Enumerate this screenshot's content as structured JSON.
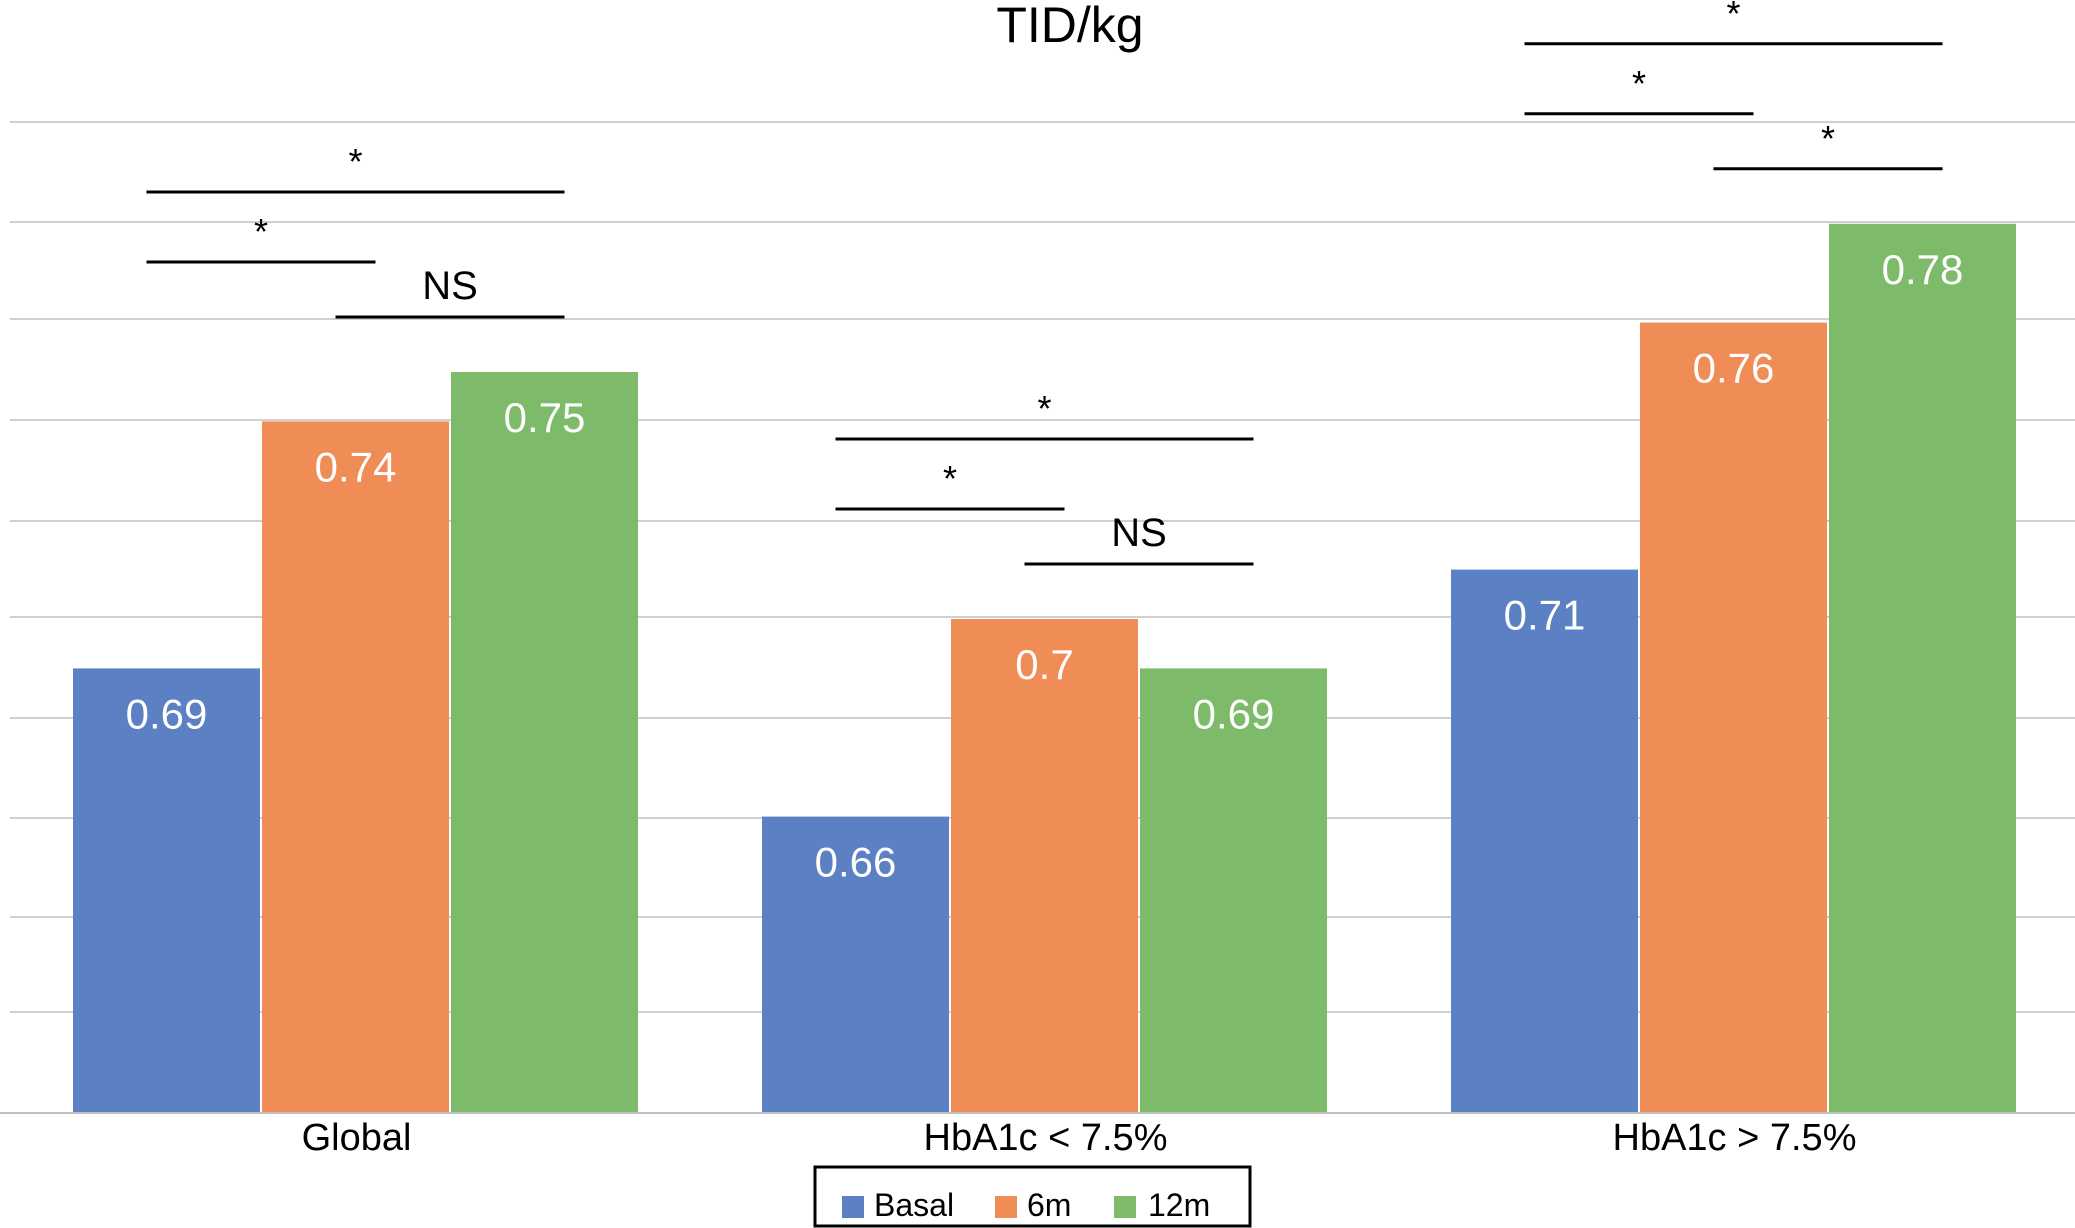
{
  "chart_data": {
    "type": "bar",
    "title": "TID/kg",
    "xlabel": "",
    "ylabel": "",
    "categories": [
      "Global",
      "HbA1c < 7.5%",
      "HbA1c > 7.5%"
    ],
    "series": [
      {
        "name": "Basal",
        "color": "#5b80c4",
        "values": [
          0.69,
          0.66,
          0.71
        ]
      },
      {
        "name": "6m",
        "color": "#f08c55",
        "values": [
          0.74,
          0.7,
          0.76
        ]
      },
      {
        "name": "12m",
        "color": "#7dbb6a",
        "values": [
          0.75,
          0.69,
          0.78
        ]
      }
    ],
    "data_labels": [
      [
        "0.69",
        "0.66",
        "0.71"
      ],
      [
        "0.74",
        "0.7",
        "0.76"
      ],
      [
        "0.75",
        "0.69",
        "0.78"
      ]
    ],
    "ylim": [
      0.6,
      0.8
    ],
    "grid": true,
    "legend_position": "bottom-center",
    "significance": [
      {
        "category": 0,
        "from_series": 0,
        "to_series": 1,
        "label": "*"
      },
      {
        "category": 0,
        "from_series": 0,
        "to_series": 2,
        "label": "*"
      },
      {
        "category": 0,
        "from_series": 1,
        "to_series": 2,
        "label": "NS"
      },
      {
        "category": 1,
        "from_series": 0,
        "to_series": 1,
        "label": "*"
      },
      {
        "category": 1,
        "from_series": 0,
        "to_series": 2,
        "label": "*"
      },
      {
        "category": 1,
        "from_series": 1,
        "to_series": 2,
        "label": "NS"
      },
      {
        "category": 2,
        "from_series": 0,
        "to_series": 1,
        "label": "*"
      },
      {
        "category": 2,
        "from_series": 0,
        "to_series": 2,
        "label": "*"
      },
      {
        "category": 2,
        "from_series": 1,
        "to_series": 2,
        "label": "*"
      }
    ]
  }
}
